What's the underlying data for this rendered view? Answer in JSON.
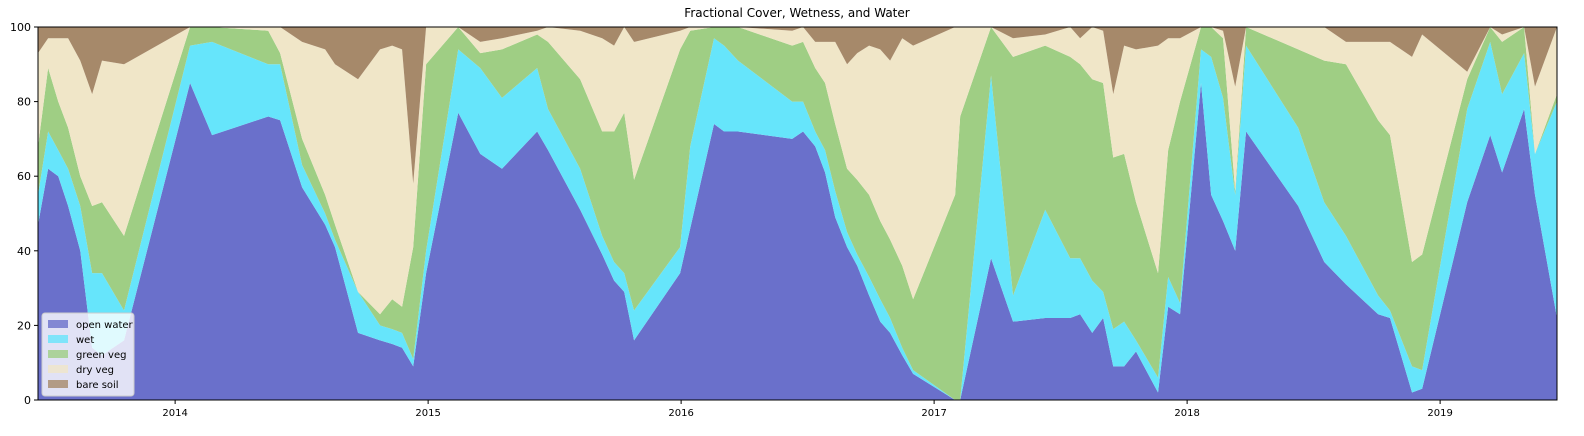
{
  "chart_data": {
    "type": "stacked-area",
    "title": "Fractional Cover, Wetness, and Water",
    "x": [
      2013.458,
      2013.498,
      2013.538,
      2013.577,
      2013.625,
      2013.672,
      2013.711,
      2013.798,
      2014.059,
      2014.146,
      2014.368,
      2014.415,
      2014.502,
      2014.593,
      2014.632,
      2014.723,
      2014.81,
      2014.858,
      2014.897,
      2014.941,
      2014.992,
      2015.119,
      2015.206,
      2015.292,
      2015.431,
      2015.474,
      2015.601,
      2015.688,
      2015.735,
      2015.775,
      2015.814,
      2015.996,
      2016.036,
      2016.13,
      2016.17,
      2016.225,
      2016.439,
      2016.482,
      2016.53,
      2016.569,
      2016.609,
      2016.656,
      2016.696,
      2016.743,
      2016.787,
      2016.826,
      2016.874,
      2016.917,
      2017.083,
      2017.103,
      2017.225,
      2017.312,
      2017.439,
      2017.538,
      2017.577,
      2017.625,
      2017.668,
      2017.708,
      2017.751,
      2017.798,
      2017.885,
      2017.925,
      2017.972,
      2018.055,
      2018.095,
      2018.142,
      2018.19,
      2018.233,
      2018.439,
      2018.542,
      2018.628,
      2018.755,
      2018.802,
      2018.889,
      2018.929,
      2019.107,
      2019.198,
      2019.245,
      2019.332,
      2019.375,
      2019.462
    ],
    "series": [
      {
        "name": "open water",
        "color": "#6a70cb",
        "values": [
          47,
          62,
          60,
          52,
          40,
          14,
          12,
          16,
          85,
          71,
          76,
          75,
          57,
          47,
          41,
          18,
          16,
          15,
          14,
          9,
          34,
          77,
          66,
          62,
          72,
          67,
          51,
          39,
          32,
          29,
          16,
          34,
          46,
          74,
          72,
          72,
          70,
          72,
          68,
          61,
          49,
          41,
          36,
          28,
          21,
          18,
          12,
          7,
          0,
          0,
          38,
          21,
          22,
          22,
          23,
          18,
          22,
          9,
          9,
          13,
          2,
          25,
          23,
          85,
          55,
          48,
          40,
          72,
          52,
          37,
          31,
          23,
          22,
          2,
          3,
          53,
          71,
          61,
          78,
          55,
          22
        ]
      },
      {
        "name": "wet",
        "color": "#66e5fb",
        "values": [
          8,
          10,
          7,
          10,
          12,
          20,
          22,
          8,
          10,
          25,
          14,
          15,
          6,
          3,
          2,
          11,
          4,
          4,
          4,
          2,
          6,
          17,
          23,
          19,
          17,
          11,
          11,
          5,
          5,
          5,
          8,
          7,
          22,
          23,
          23,
          19,
          10,
          8,
          4,
          6,
          7,
          4,
          3,
          5,
          6,
          4,
          2,
          1,
          0,
          0,
          49,
          7,
          29,
          16,
          15,
          14,
          7,
          10,
          12,
          3,
          4,
          8,
          3,
          9,
          37,
          33,
          15,
          23,
          21,
          16,
          13,
          5,
          2,
          7,
          5,
          25,
          25,
          21,
          15,
          11,
          58
        ]
      },
      {
        "name": "green veg",
        "color": "#9fce84",
        "values": [
          13,
          17,
          13,
          11,
          8,
          18,
          19,
          20,
          5,
          4,
          9,
          3,
          7,
          5,
          4,
          0,
          3,
          8,
          7,
          30,
          50,
          6,
          4,
          13,
          9,
          18,
          24,
          28,
          35,
          43,
          35,
          53,
          31,
          3,
          5,
          9,
          15,
          16,
          17,
          18,
          18,
          17,
          20,
          22,
          21,
          21,
          22,
          19,
          55,
          76,
          13,
          64,
          44,
          54,
          52,
          54,
          56,
          46,
          45,
          37,
          28,
          34,
          54,
          6,
          8,
          16,
          1,
          5,
          21,
          38,
          46,
          47,
          47,
          28,
          31,
          8,
          4,
          14,
          7,
          0,
          2
        ]
      },
      {
        "name": "dry veg",
        "color": "#f0e6c8",
        "values": [
          25,
          8,
          17,
          24,
          31,
          30,
          38,
          46,
          0,
          0,
          1,
          7,
          26,
          39,
          43,
          57,
          71,
          68,
          69,
          17,
          10,
          0,
          3,
          3,
          1,
          4,
          13,
          25,
          23,
          23,
          37,
          5,
          1,
          0,
          0,
          0,
          4,
          4,
          7,
          11,
          22,
          28,
          34,
          40,
          46,
          48,
          61,
          68,
          45,
          24,
          0,
          5,
          3,
          8,
          7,
          14,
          14,
          17,
          29,
          41,
          61,
          30,
          17,
          0,
          0,
          2,
          28,
          0,
          6,
          9,
          6,
          21,
          25,
          55,
          59,
          2,
          0,
          2,
          0,
          18,
          18
        ]
      },
      {
        "name": "bare soil",
        "color": "#a6896a",
        "values": [
          7,
          3,
          3,
          3,
          9,
          18,
          9,
          10,
          0,
          0,
          0,
          0,
          4,
          6,
          10,
          14,
          6,
          5,
          6,
          42,
          0,
          0,
          4,
          3,
          1,
          0,
          1,
          3,
          5,
          0,
          4,
          1,
          0,
          0,
          0,
          0,
          1,
          0,
          4,
          4,
          4,
          10,
          7,
          5,
          6,
          9,
          3,
          5,
          0,
          0,
          0,
          3,
          2,
          0,
          3,
          0,
          1,
          18,
          5,
          6,
          5,
          3,
          3,
          0,
          0,
          1,
          16,
          0,
          0,
          0,
          4,
          4,
          4,
          8,
          2,
          12,
          0,
          2,
          0,
          16,
          0
        ]
      }
    ],
    "xlim": [
      2013.458,
      2019.462
    ],
    "xticks": [
      2014,
      2015,
      2016,
      2017,
      2018,
      2019
    ],
    "ylim": [
      0,
      100
    ],
    "yticks": [
      0,
      20,
      40,
      60,
      80,
      100
    ],
    "legend": "lower left"
  }
}
